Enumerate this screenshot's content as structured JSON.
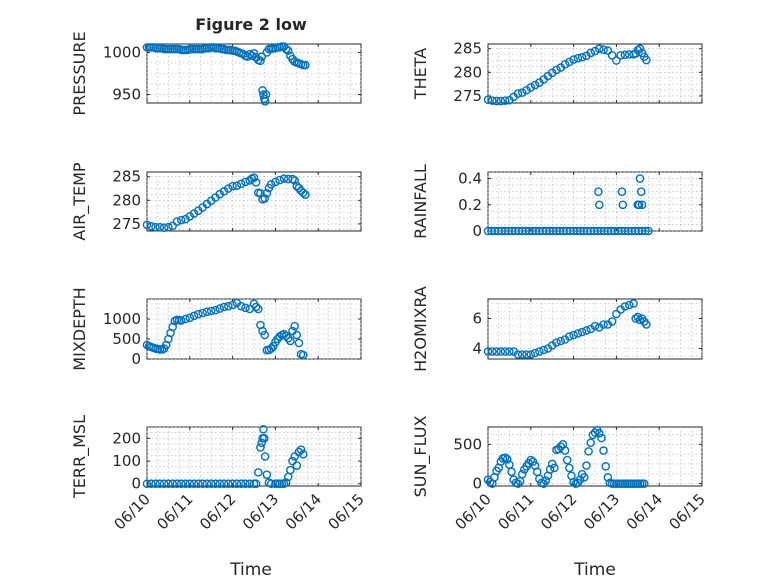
{
  "figure": {
    "title": "Figure 2 low",
    "marker_color": "#0072BD"
  },
  "x_axis": {
    "label": "Time",
    "ticks": [
      "06/10",
      "06/11",
      "06/12",
      "06/13",
      "06/14",
      "06/15"
    ]
  },
  "chart_data": [
    {
      "type": "scatter",
      "id": "pressure",
      "title": "Figure 2 low",
      "ylabel": "PRESSURE",
      "ylim": [
        940,
        1010
      ],
      "yticks": [
        950,
        1000
      ],
      "grid": true,
      "series": [
        {
          "x": [
            0.0,
            0.05,
            0.1,
            0.15,
            0.2,
            0.25,
            0.3,
            0.35,
            0.4,
            0.45,
            0.5,
            0.55,
            0.6,
            0.65,
            0.7,
            0.75,
            0.8,
            0.85,
            0.9,
            0.95,
            1.0,
            1.05,
            1.1,
            1.15,
            1.2,
            1.25,
            1.3,
            1.35,
            1.4,
            1.45,
            1.5,
            1.55,
            1.6,
            1.65,
            1.7,
            1.75,
            1.8,
            1.85,
            1.9,
            1.95,
            2.0,
            2.05,
            2.1,
            2.15,
            2.2,
            2.25,
            2.3,
            2.35,
            2.4,
            2.45,
            2.5,
            2.55,
            2.6,
            2.65,
            2.68,
            2.7,
            2.72,
            2.74,
            2.76,
            2.78,
            2.8,
            2.85,
            2.9,
            2.95,
            3.0,
            3.05,
            3.1,
            3.15,
            3.2,
            3.25,
            3.3,
            3.35,
            3.4,
            3.45,
            3.5,
            3.55,
            3.6,
            3.65,
            3.7
          ],
          "y": [
            1006,
            1006,
            1006,
            1006,
            1005,
            1005,
            1005,
            1005,
            1004,
            1004,
            1004,
            1004,
            1004,
            1004,
            1004,
            1004,
            1003,
            1003,
            1003,
            1003,
            1004,
            1004,
            1004,
            1004,
            1004,
            1004,
            1004,
            1005,
            1005,
            1005,
            1006,
            1006,
            1005,
            1005,
            1005,
            1004,
            1004,
            1003,
            1003,
            1003,
            1002,
            1002,
            1001,
            1000,
            999,
            998,
            996,
            995,
            998,
            996,
            999,
            994,
            991,
            990,
            995,
            955,
            950,
            945,
            942,
            950,
            1000,
            1004,
            1004,
            1005,
            1005,
            1006,
            1006,
            1007,
            1007,
            1004,
            1002,
            996,
            992,
            989,
            988,
            987,
            986,
            985,
            985
          ]
        }
      ]
    },
    {
      "type": "scatter",
      "id": "theta",
      "ylabel": "THETA",
      "ylim": [
        273.5,
        286
      ],
      "yticks": [
        275,
        280,
        285
      ],
      "grid": true,
      "series": [
        {
          "x": [
            0.0,
            0.1,
            0.2,
            0.3,
            0.4,
            0.5,
            0.6,
            0.7,
            0.8,
            0.9,
            1.0,
            1.1,
            1.2,
            1.3,
            1.4,
            1.5,
            1.6,
            1.7,
            1.8,
            1.9,
            2.0,
            2.1,
            2.2,
            2.3,
            2.4,
            2.5,
            2.6,
            2.7,
            2.8,
            2.9,
            3.0,
            3.1,
            3.2,
            3.3,
            3.4,
            3.45,
            3.5,
            3.55,
            3.6,
            3.65,
            3.7
          ],
          "y": [
            274.2,
            274.0,
            273.9,
            273.9,
            274.0,
            274.1,
            274.8,
            275.5,
            275.7,
            276.2,
            276.8,
            277.3,
            277.8,
            278.5,
            279.2,
            279.9,
            280.5,
            281.0,
            281.7,
            282.2,
            282.7,
            283.0,
            283.2,
            283.5,
            284.1,
            284.5,
            285.0,
            284.8,
            284.6,
            283.6,
            282.5,
            283.6,
            283.7,
            283.8,
            283.8,
            284.0,
            284.7,
            285.0,
            284.1,
            283.3,
            282.6
          ]
        }
      ]
    },
    {
      "type": "scatter",
      "id": "air-temp",
      "ylabel": "AIR_TEMP",
      "ylim": [
        273.5,
        286
      ],
      "yticks": [
        275,
        280,
        285
      ],
      "grid": true,
      "series": [
        {
          "x": [
            0.0,
            0.1,
            0.2,
            0.3,
            0.4,
            0.5,
            0.6,
            0.7,
            0.8,
            0.9,
            1.0,
            1.1,
            1.2,
            1.3,
            1.4,
            1.5,
            1.6,
            1.7,
            1.8,
            1.9,
            2.0,
            2.1,
            2.2,
            2.3,
            2.4,
            2.45,
            2.5,
            2.55,
            2.6,
            2.65,
            2.7,
            2.75,
            2.8,
            2.85,
            2.9,
            3.0,
            3.1,
            3.2,
            3.3,
            3.4,
            3.45,
            3.5,
            3.55,
            3.6,
            3.65,
            3.7
          ],
          "y": [
            274.8,
            274.5,
            274.3,
            274.3,
            274.2,
            274.3,
            274.6,
            275.5,
            275.8,
            276.0,
            276.6,
            277.2,
            277.8,
            278.5,
            279.2,
            279.9,
            280.6,
            281.3,
            281.9,
            282.5,
            283.0,
            283.1,
            283.5,
            283.9,
            284.2,
            284.6,
            284.8,
            283.8,
            281.6,
            281.5,
            280.2,
            280.4,
            281.5,
            282.6,
            283.4,
            283.9,
            284.3,
            284.6,
            284.5,
            284.5,
            284.2,
            283.0,
            282.6,
            282.0,
            281.6,
            281.2
          ]
        }
      ]
    },
    {
      "type": "scatter",
      "id": "rainfall",
      "ylabel": "RAINFALL",
      "ylim": [
        0,
        0.45
      ],
      "yticks": [
        0,
        0.2,
        0.4
      ],
      "grid": true,
      "series": [
        {
          "x": [
            0.0,
            0.08,
            0.16,
            0.24,
            0.32,
            0.4,
            0.48,
            0.56,
            0.64,
            0.72,
            0.8,
            0.88,
            0.96,
            1.04,
            1.12,
            1.2,
            1.28,
            1.36,
            1.44,
            1.52,
            1.6,
            1.68,
            1.76,
            1.84,
            1.92,
            2.0,
            2.08,
            2.16,
            2.24,
            2.32,
            2.4,
            2.48,
            2.56,
            2.64,
            2.72,
            2.8,
            2.88,
            2.96,
            3.04,
            3.12,
            3.2,
            3.28,
            3.36,
            3.44,
            3.52,
            3.6,
            3.68,
            3.75,
            2.58,
            2.6,
            3.13,
            3.15,
            3.5,
            3.53,
            3.55,
            3.58,
            3.6
          ],
          "y": [
            0,
            0,
            0,
            0,
            0,
            0,
            0,
            0,
            0,
            0,
            0,
            0,
            0,
            0,
            0,
            0,
            0,
            0,
            0,
            0,
            0,
            0,
            0,
            0,
            0,
            0,
            0,
            0,
            0,
            0,
            0,
            0,
            0,
            0,
            0,
            0,
            0,
            0,
            0,
            0,
            0,
            0,
            0,
            0,
            0,
            0,
            0,
            0,
            0.3,
            0.2,
            0.3,
            0.2,
            0.2,
            0.2,
            0.4,
            0.3,
            0.2
          ]
        }
      ]
    },
    {
      "type": "scatter",
      "id": "mixdepth",
      "ylabel": "MIXDEPTH",
      "ylim": [
        0,
        1500
      ],
      "yticks": [
        0,
        500,
        1000
      ],
      "grid": true,
      "series": [
        {
          "x": [
            0.0,
            0.05,
            0.1,
            0.15,
            0.2,
            0.25,
            0.3,
            0.35,
            0.4,
            0.45,
            0.5,
            0.55,
            0.6,
            0.65,
            0.7,
            0.75,
            0.8,
            0.9,
            1.0,
            1.1,
            1.2,
            1.3,
            1.4,
            1.5,
            1.6,
            1.7,
            1.8,
            1.9,
            2.0,
            2.1,
            2.2,
            2.3,
            2.4,
            2.5,
            2.55,
            2.6,
            2.65,
            2.7,
            2.75,
            2.8,
            2.85,
            2.9,
            2.95,
            3.0,
            3.05,
            3.1,
            3.15,
            3.2,
            3.25,
            3.3,
            3.35,
            3.4,
            3.45,
            3.5,
            3.55,
            3.6,
            3.65
          ],
          "y": [
            350,
            320,
            300,
            280,
            260,
            250,
            240,
            240,
            260,
            350,
            500,
            650,
            800,
            950,
            980,
            970,
            960,
            1000,
            1030,
            1080,
            1120,
            1150,
            1180,
            1200,
            1220,
            1260,
            1300,
            1320,
            1350,
            1400,
            1320,
            1280,
            1250,
            1380,
            1300,
            1250,
            850,
            700,
            600,
            220,
            230,
            260,
            320,
            420,
            500,
            560,
            600,
            620,
            580,
            520,
            450,
            700,
            820,
            600,
            400,
            120,
            100
          ]
        }
      ]
    },
    {
      "type": "scatter",
      "id": "h2omixra",
      "ylabel": "H2OMIXRA",
      "ylim": [
        3.3,
        7.3
      ],
      "yticks": [
        4,
        6
      ],
      "grid": true,
      "series": [
        {
          "x": [
            0.0,
            0.1,
            0.2,
            0.3,
            0.4,
            0.5,
            0.6,
            0.7,
            0.8,
            0.9,
            1.0,
            1.1,
            1.2,
            1.3,
            1.4,
            1.5,
            1.6,
            1.7,
            1.8,
            1.9,
            2.0,
            2.1,
            2.2,
            2.3,
            2.4,
            2.5,
            2.6,
            2.7,
            2.8,
            2.9,
            3.0,
            3.1,
            3.2,
            3.3,
            3.4,
            3.45,
            3.5,
            3.55,
            3.6,
            3.65,
            3.7
          ],
          "y": [
            3.8,
            3.8,
            3.8,
            3.8,
            3.8,
            3.8,
            3.8,
            3.6,
            3.6,
            3.6,
            3.6,
            3.7,
            3.8,
            3.9,
            4.0,
            4.2,
            4.4,
            4.5,
            4.6,
            4.8,
            4.9,
            5.0,
            5.1,
            5.2,
            5.3,
            5.5,
            5.4,
            5.6,
            5.6,
            5.8,
            6.3,
            6.6,
            6.8,
            6.9,
            7.0,
            6.0,
            6.1,
            5.9,
            6.0,
            5.8,
            5.6
          ]
        }
      ]
    },
    {
      "type": "scatter",
      "id": "terr-msl",
      "ylabel": "TERR_MSL",
      "ylim": [
        -10,
        250
      ],
      "yticks": [
        0,
        100,
        200
      ],
      "grid": true,
      "series": [
        {
          "x": [
            0.0,
            0.1,
            0.2,
            0.3,
            0.4,
            0.5,
            0.6,
            0.7,
            0.8,
            0.9,
            1.0,
            1.1,
            1.2,
            1.3,
            1.4,
            1.5,
            1.6,
            1.7,
            1.8,
            1.9,
            2.0,
            2.1,
            2.2,
            2.3,
            2.4,
            2.5,
            2.55,
            2.6,
            2.65,
            2.68,
            2.7,
            2.72,
            2.74,
            2.76,
            2.8,
            2.85,
            2.9,
            3.0,
            3.05,
            3.1,
            3.15,
            3.2,
            3.25,
            3.3,
            3.35,
            3.4,
            3.45,
            3.5,
            3.55,
            3.6,
            3.65
          ],
          "y": [
            0,
            0,
            0,
            0,
            0,
            0,
            0,
            0,
            0,
            0,
            0,
            0,
            0,
            0,
            0,
            0,
            0,
            0,
            0,
            0,
            0,
            0,
            0,
            0,
            0,
            0,
            0,
            50,
            160,
            180,
            200,
            240,
            200,
            120,
            40,
            5,
            0,
            0,
            0,
            0,
            0,
            0,
            5,
            30,
            60,
            100,
            120,
            80,
            140,
            150,
            130
          ]
        }
      ]
    },
    {
      "type": "scatter",
      "id": "sun-flux",
      "ylabel": "SUN_FLUX",
      "ylim": [
        -30,
        720
      ],
      "yticks": [
        0,
        500
      ],
      "grid": true,
      "series": [
        {
          "x": [
            0.0,
            0.05,
            0.1,
            0.15,
            0.2,
            0.25,
            0.3,
            0.35,
            0.4,
            0.45,
            0.5,
            0.55,
            0.6,
            0.65,
            0.7,
            0.75,
            0.8,
            0.85,
            0.9,
            0.95,
            1.0,
            1.05,
            1.1,
            1.15,
            1.2,
            1.25,
            1.3,
            1.35,
            1.4,
            1.45,
            1.5,
            1.55,
            1.6,
            1.65,
            1.7,
            1.75,
            1.8,
            1.85,
            1.9,
            1.95,
            2.0,
            2.05,
            2.1,
            2.15,
            2.2,
            2.25,
            2.3,
            2.35,
            2.4,
            2.45,
            2.5,
            2.55,
            2.6,
            2.65,
            2.7,
            2.75,
            2.8,
            2.85,
            2.9,
            2.95,
            3.0,
            3.05,
            3.1,
            3.15,
            3.2,
            3.25,
            3.3,
            3.35,
            3.4,
            3.45,
            3.5,
            3.55,
            3.6,
            3.65
          ],
          "y": [
            50,
            20,
            0,
            80,
            160,
            200,
            280,
            320,
            330,
            310,
            240,
            150,
            50,
            10,
            0,
            30,
            120,
            180,
            220,
            260,
            300,
            280,
            230,
            150,
            60,
            10,
            0,
            40,
            100,
            180,
            250,
            200,
            430,
            440,
            470,
            500,
            420,
            300,
            200,
            100,
            20,
            0,
            10,
            50,
            120,
            80,
            230,
            410,
            520,
            620,
            650,
            680,
            640,
            580,
            420,
            220,
            80,
            10,
            0,
            0,
            0,
            0,
            0,
            0,
            0,
            0,
            0,
            0,
            0,
            0,
            0,
            0,
            0,
            0
          ]
        }
      ]
    }
  ]
}
